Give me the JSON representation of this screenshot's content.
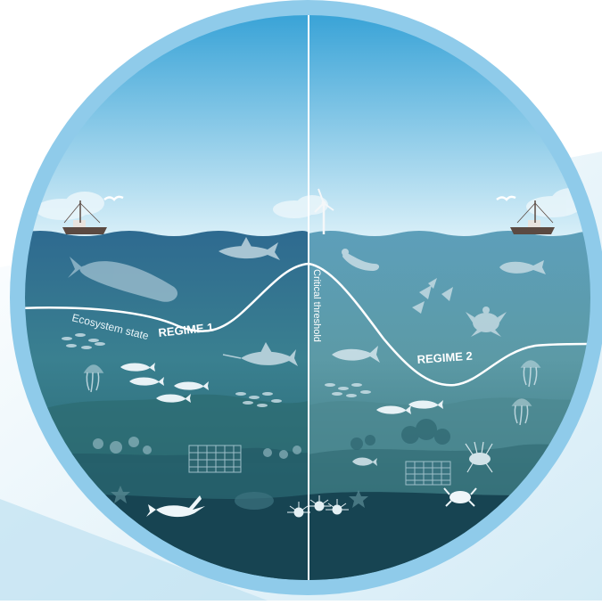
{
  "labels": {
    "regime1": "REGIME 1",
    "regime2": "REGIME 2",
    "ecosystem_state": "Ecosystem state",
    "critical_threshold": "Critical threshold"
  },
  "icons": {
    "left_surface": [
      "fishing-boat-icon",
      "seagull-icon",
      "cloud-icon"
    ],
    "right_surface": [
      "wind-turbine-icon",
      "fishing-boat-icon",
      "seagull-icon",
      "cloud-icon"
    ],
    "left_underwater": [
      "whale-icon",
      "shark-icon",
      "swordfish-icon",
      "jellyfish-icon",
      "cod-icon",
      "fish-school-icon",
      "fish-trap-icon",
      "lobster-icon",
      "flatfish-icon",
      "sea-urchin-icon",
      "starfish-icon"
    ],
    "right_underwater": [
      "seal-icon",
      "squid-icon",
      "sea-turtle-icon",
      "mahi-mahi-icon",
      "tuna-icon",
      "jellyfish-icon",
      "fish-school-icon",
      "lionfish-icon",
      "fish-trap-icon",
      "crab-icon",
      "sea-urchin-icon",
      "starfish-icon"
    ]
  },
  "colors": {
    "ring": "#8fcbea",
    "sky_top": "#3ea7d9",
    "sky_bottom": "#d6eef7",
    "ocean_left_top": "#2f6f94",
    "ocean_right_top": "#5a9db7",
    "ocean_deep": "#1e4d5e",
    "seabed": "#174452",
    "state_line": "#ffffff",
    "silhouette": "#e8f4f8"
  }
}
